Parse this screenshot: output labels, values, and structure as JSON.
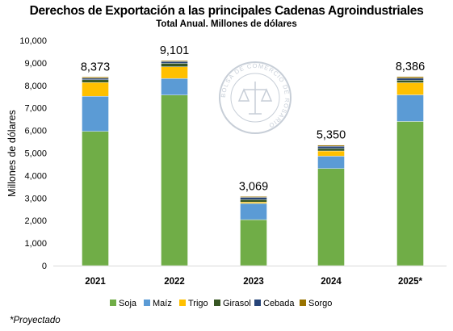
{
  "chart_data": {
    "type": "bar",
    "stacked": true,
    "title": "Derechos de Exportación a las principales Cadenas Agroindustriales",
    "subtitle": "Total Anual. Millones de dólares",
    "ylabel": "Millones de dólares",
    "xlabel": "",
    "ylim": [
      0,
      10000
    ],
    "yticks": [
      "0",
      "1,000",
      "2,000",
      "3,000",
      "4,000",
      "5,000",
      "6,000",
      "7,000",
      "8,000",
      "9,000",
      "10,000"
    ],
    "ytick_values": [
      0,
      1000,
      2000,
      3000,
      4000,
      5000,
      6000,
      7000,
      8000,
      9000,
      10000
    ],
    "grid": false,
    "legend_position": "bottom",
    "categories": [
      "2021",
      "2022",
      "2023",
      "2024",
      "2025*"
    ],
    "totals": [
      "8,373",
      "9,101",
      "3,069",
      "5,350",
      "8,386"
    ],
    "series": [
      {
        "name": "Soja",
        "color": "#70ad47",
        "values": [
          5960,
          7570,
          2040,
          4310,
          6400
        ]
      },
      {
        "name": "Maíz",
        "color": "#5b9bd5",
        "values": [
          1560,
          740,
          720,
          550,
          1180
        ]
      },
      {
        "name": "Trigo",
        "color": "#ffc000",
        "values": [
          610,
          520,
          60,
          230,
          540
        ]
      },
      {
        "name": "Girasol",
        "color": "#375623",
        "values": [
          120,
          150,
          110,
          110,
          110
        ]
      },
      {
        "name": "Cebada",
        "color": "#264478",
        "values": [
          70,
          80,
          100,
          100,
          90
        ]
      },
      {
        "name": "Sorgo",
        "color": "#997300",
        "values": [
          53,
          41,
          39,
          50,
          66
        ]
      }
    ]
  },
  "footnote": "*Proyectado",
  "watermark": "BOLSA DE COMERCIO DE ROSARIO"
}
